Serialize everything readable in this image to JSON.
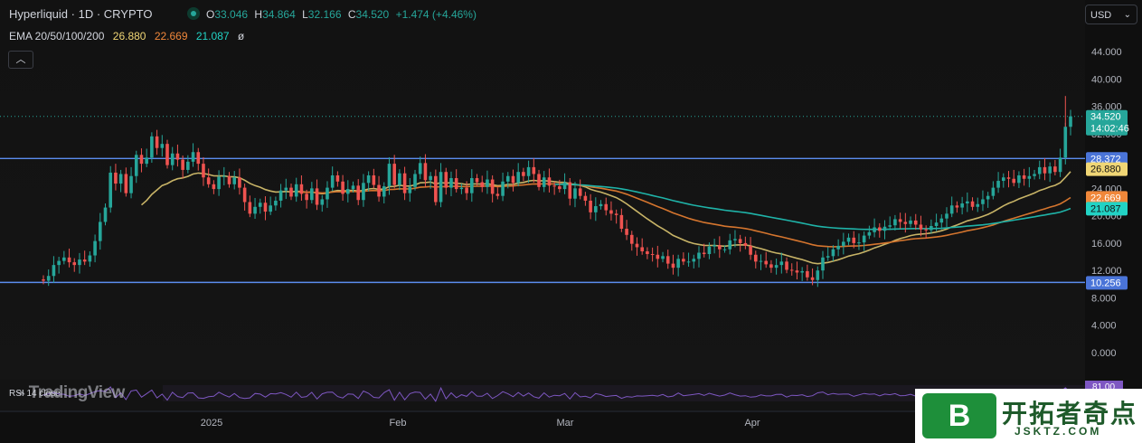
{
  "header": {
    "title": "Hyperliquid · 1D · CRYPTO",
    "ohlc": [
      {
        "key": "O",
        "value": "33.046"
      },
      {
        "key": "H",
        "value": "34.864"
      },
      {
        "key": "L",
        "value": "32.166"
      },
      {
        "key": "C",
        "value": "34.520"
      }
    ],
    "change": "+1.474 (+4.46%)",
    "currency": "USD",
    "collapse_icon": "chevron-up-icon"
  },
  "indicators": {
    "ema_label": "EMA 20/50/100/200",
    "ema_values": [
      {
        "value": "26.880",
        "color": "#f0d675"
      },
      {
        "value": "22.669",
        "color": "#f0873a"
      },
      {
        "value": "21.087",
        "color": "#22d3c5"
      }
    ],
    "ema_extra": "ø",
    "rsi_label": "RSI 14 close",
    "rsi_value": "81.00"
  },
  "watermarks": {
    "tradingview": "TradingView",
    "site_logo": "B",
    "site_name": "开拓者奇点",
    "site_url": "JSKTZ.COM"
  },
  "chart_data": {
    "type": "candlestick",
    "y_ticks": [
      "44.000",
      "40.000",
      "36.000",
      "32.000",
      "28.000",
      "24.000",
      "20.000",
      "16.000",
      "12.000",
      "8.000",
      "4.000",
      "0.000"
    ],
    "x_ticks": [
      "2025",
      "Feb",
      "Mar",
      "Apr"
    ],
    "price_labels": [
      {
        "label": "34.520",
        "sub": "14:02:46",
        "color": "#26a69a",
        "value": 34.52
      },
      {
        "label": "28.372",
        "color": "#4a74d8",
        "value": 28.372
      },
      {
        "label": "26.880",
        "color": "#f0d675",
        "value": 26.88
      },
      {
        "label": "22.669",
        "color": "#f0873a",
        "value": 22.669
      },
      {
        "label": "21.087",
        "color": "#22d3c5",
        "value": 21.087
      },
      {
        "label": "10.256",
        "color": "#4a74d8",
        "value": 10.256
      }
    ],
    "horizontal_lines": [
      28.372,
      10.256
    ],
    "colors": {
      "up": "#26a69a",
      "down": "#ef5350",
      "hline": "#5b8def",
      "ema20": "#c8b467",
      "ema50": "#d5752e",
      "ema100": "#1fb3a8",
      "rsi": "#7e57c2"
    },
    "closes": [
      10.5,
      11.2,
      12.8,
      13.4,
      13.9,
      13.2,
      12.8,
      13.6,
      13.3,
      14.2,
      16.3,
      19.1,
      21.2,
      26.3,
      24.7,
      26.1,
      23.3,
      25.8,
      28.9,
      27.6,
      28.5,
      31.6,
      29.9,
      30.5,
      27.4,
      29.1,
      28.2,
      26.7,
      27.9,
      29.3,
      27.6,
      25.6,
      24.6,
      23.9,
      25.7,
      25.8,
      24.6,
      25.6,
      24.1,
      22.0,
      20.3,
      21.3,
      21.9,
      20.6,
      21.5,
      22.2,
      23.7,
      24.1,
      22.8,
      24.6,
      23.2,
      22.3,
      24.0,
      21.6,
      22.4,
      24.1,
      25.9,
      25.0,
      23.2,
      23.9,
      24.4,
      22.3,
      24.8,
      25.9,
      24.5,
      22.8,
      24.3,
      27.6,
      24.5,
      26.2,
      23.3,
      24.2,
      26.1,
      27.7,
      25.2,
      25.8,
      22.0,
      26.4,
      24.1,
      25.5,
      23.9,
      24.1,
      23.3,
      25.5,
      24.9,
      24.2,
      25.3,
      23.2,
      22.9,
      25.0,
      25.8,
      24.8,
      26.4,
      25.8,
      27.1,
      26.1,
      24.2,
      25.6,
      24.4,
      24.3,
      23.9,
      24.9,
      22.5,
      24.0,
      22.9,
      22.2,
      20.5,
      21.4,
      21.7,
      20.8,
      20.3,
      20.1,
      18.1,
      17.2,
      15.9,
      15.4,
      14.8,
      14.4,
      14.3,
      13.7,
      14.1,
      13.0,
      12.4,
      13.7,
      13.3,
      13.3,
      13.7,
      14.6,
      14.4,
      15.5,
      15.7,
      15.1,
      15.1,
      16.4,
      16.6,
      16.0,
      15.6,
      14.3,
      13.3,
      13.4,
      12.9,
      12.4,
      12.8,
      13.3,
      12.1,
      12.0,
      11.7,
      11.9,
      11.0,
      10.6,
      12.0,
      13.9,
      14.1,
      15.1,
      15.6,
      16.2,
      16.8,
      16.0,
      16.1,
      17.1,
      17.6,
      18.3,
      17.8,
      18.4,
      18.6,
      19.5,
      19.1,
      18.8,
      19.3,
      18.7,
      18.0,
      17.9,
      18.5,
      19.0,
      19.6,
      20.3,
      21.5,
      21.2,
      21.8,
      22.1,
      21.3,
      21.7,
      22.4,
      22.9,
      24.1,
      25.1,
      25.6,
      25.4,
      24.8,
      25.9,
      25.4,
      25.8,
      26.1,
      27.1,
      26.2,
      27.2,
      26.4,
      28.5,
      33.0,
      34.52
    ]
  }
}
